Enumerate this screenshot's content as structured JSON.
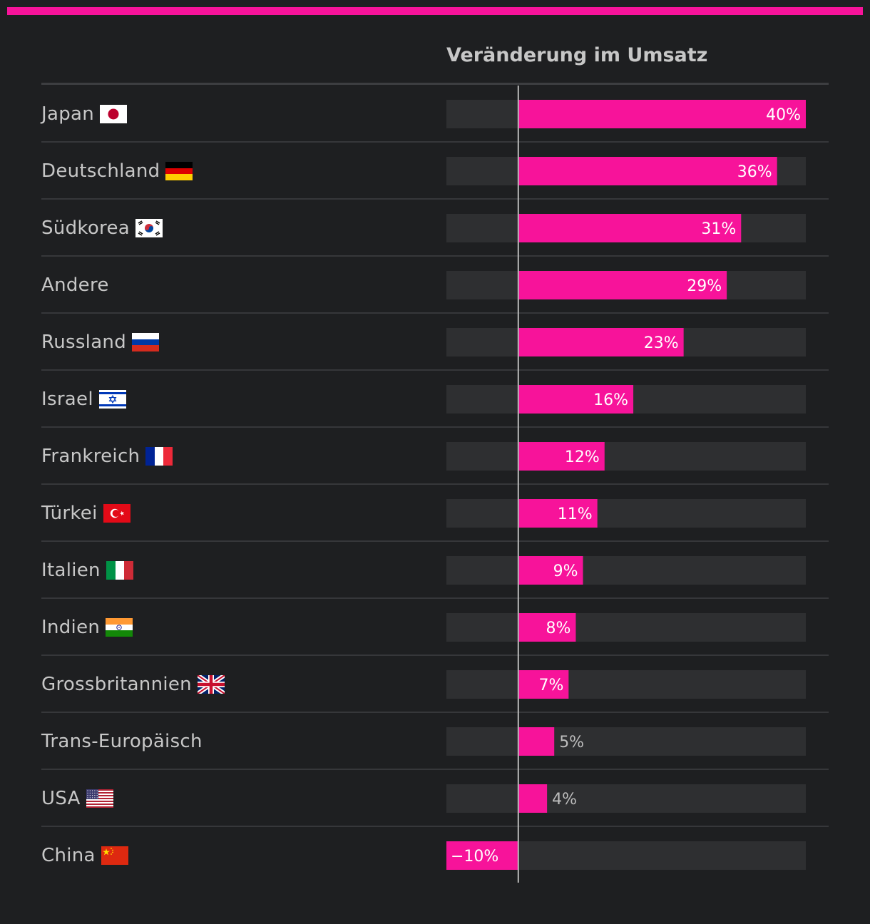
{
  "accent_color": "#f7139a",
  "track_color": "#2e2f31",
  "text_color": "#c7c7c7",
  "header": {
    "title": "Veränderung im Umsatz"
  },
  "chart_data": {
    "type": "bar",
    "orientation": "horizontal",
    "title": "Veränderung im Umsatz",
    "xlim": [
      -10,
      40
    ],
    "unit": "%",
    "categories": [
      "Japan",
      "Deutschland",
      "Südkorea",
      "Andere",
      "Russland",
      "Israel",
      "Frankreich",
      "Türkei",
      "Italien",
      "Indien",
      "Grossbritannien",
      "Trans-Europäisch",
      "USA",
      "China"
    ],
    "values": [
      40,
      36,
      31,
      29,
      23,
      16,
      12,
      11,
      9,
      8,
      7,
      5,
      4,
      -10
    ],
    "data_labels": [
      "40%",
      "36%",
      "31%",
      "29%",
      "23%",
      "16%",
      "12%",
      "11%",
      "9%",
      "8%",
      "7%",
      "5%",
      "4%",
      "−10%"
    ],
    "flags": [
      "japan-flag-icon",
      "germany-flag-icon",
      "south-korea-flag-icon",
      "",
      "russia-flag-icon",
      "israel-flag-icon",
      "france-flag-icon",
      "turkey-flag-icon",
      "italy-flag-icon",
      "india-flag-icon",
      "uk-flag-icon",
      "",
      "usa-flag-icon",
      "china-flag-icon"
    ]
  }
}
